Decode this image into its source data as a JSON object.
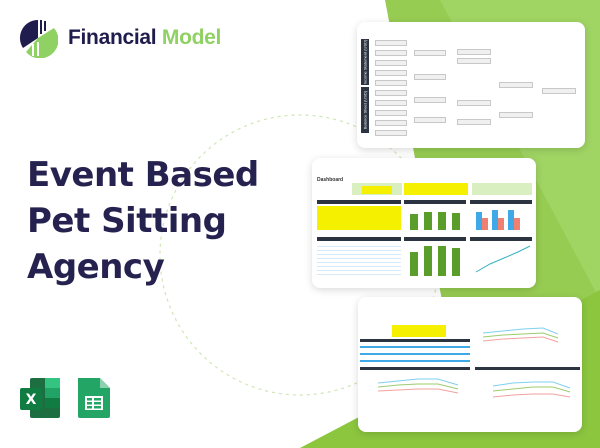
{
  "brand": {
    "name_part1": "Financial",
    "name_part2": "Model",
    "colors": {
      "navy": "#1f1d4d",
      "green": "#8fd163",
      "bg_green": "#8cc63f"
    }
  },
  "title": {
    "lines": [
      "Event Based",
      "Pet Sitting",
      "Agency"
    ]
  },
  "previews": [
    {
      "name": "ratio-tree-diagram",
      "sections": [
        "Income Statement (USD)",
        "Balance Sheet (USD)"
      ]
    },
    {
      "name": "dashboard",
      "label": "Dashboard"
    },
    {
      "name": "scenario-charts"
    }
  ],
  "icons": [
    "excel-icon",
    "google-sheets-icon"
  ]
}
